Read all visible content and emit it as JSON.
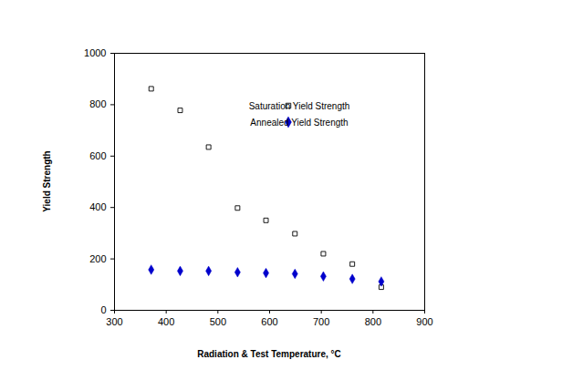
{
  "chart_data": {
    "type": "scatter",
    "x_label": "Radiation & Test Temperature, °C",
    "y_label": "Yield Strength",
    "x": [
      371,
      427,
      482,
      538,
      593,
      649,
      704,
      760,
      816
    ],
    "series": [
      {
        "name": "Saturation Yield Strength",
        "color": "#000000",
        "marker": "open square",
        "values": [
          862,
          778,
          635,
          398,
          350,
          298,
          220,
          180,
          90
        ]
      },
      {
        "name": "Annealed Yield Strength",
        "color": "#0000cc",
        "marker": "diamond",
        "values": [
          158,
          153,
          153,
          148,
          145,
          142,
          132,
          122,
          112
        ]
      }
    ],
    "xlim": [
      300,
      900
    ],
    "xticks": [
      300,
      400,
      500,
      600,
      700,
      800,
      900
    ],
    "ylim": [
      0,
      1000
    ],
    "yticks": [
      0,
      200,
      400,
      600,
      800,
      1000
    ],
    "grid": false,
    "legend": "upper right"
  }
}
